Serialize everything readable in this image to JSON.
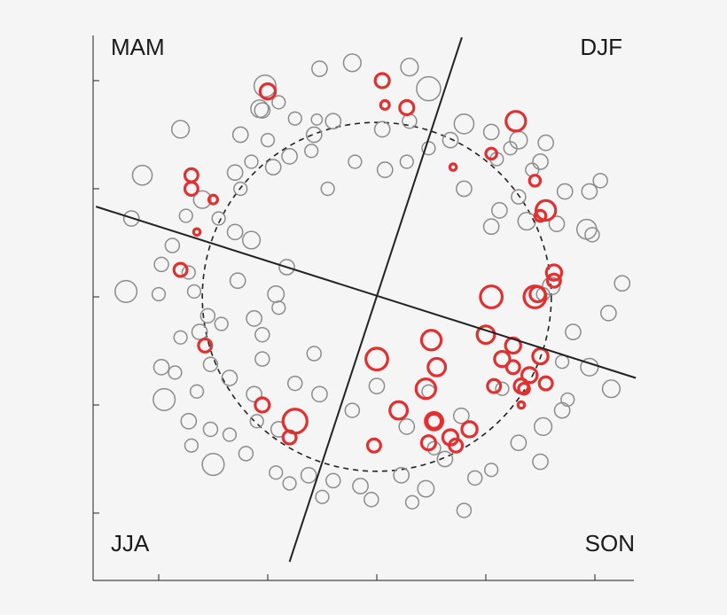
{
  "chart_data": {
    "type": "scatter",
    "title": "",
    "xlabel": "",
    "ylabel": "",
    "xlim": [
      -5,
      5
    ],
    "ylim": [
      -5,
      5
    ],
    "x_ticks": [
      -4,
      -2,
      0,
      2,
      4
    ],
    "y_ticks": [
      -4,
      -2,
      0,
      2,
      4
    ],
    "grid": false,
    "reference_circle": {
      "cx": 0,
      "cy": 0,
      "r": 3.2,
      "style": "dashed"
    },
    "dividing_lines": [
      {
        "x1": -5.15,
        "y1": 1.67,
        "x2": 4.75,
        "y2": -1.5
      },
      {
        "x1": 1.56,
        "y1": 4.8,
        "x2": -1.6,
        "y2": -4.9
      }
    ],
    "quadrant_labels": [
      {
        "text": "MAM",
        "position": "top-left"
      },
      {
        "text": "DJF",
        "position": "top-right"
      },
      {
        "text": "JJA",
        "position": "bottom-left"
      },
      {
        "text": "SON",
        "position": "bottom-right"
      }
    ],
    "series": [
      {
        "color": "#8c8c8c",
        "points": [
          [
            -2.15,
            3.48,
            0.16
          ],
          [
            -2.1,
            3.45,
            0.14
          ],
          [
            -1.8,
            3.6,
            0.12
          ],
          [
            -2.05,
            3.9,
            0.2
          ],
          [
            -1.05,
            4.22,
            0.14
          ],
          [
            -0.45,
            4.33,
            0.16
          ],
          [
            0.6,
            4.25,
            0.16
          ],
          [
            0.95,
            3.85,
            0.22
          ],
          [
            -1.15,
            3.0,
            0.14
          ],
          [
            -2.5,
            3.0,
            0.14
          ],
          [
            -3.6,
            3.1,
            0.16
          ],
          [
            -2.0,
            2.9,
            0.12
          ],
          [
            -1.5,
            3.3,
            0.12
          ],
          [
            -1.1,
            3.28,
            0.1
          ],
          [
            -0.8,
            3.25,
            0.14
          ],
          [
            0.1,
            3.1,
            0.14
          ],
          [
            0.6,
            3.25,
            0.13
          ],
          [
            1.6,
            3.2,
            0.18
          ],
          [
            2.1,
            3.05,
            0.14
          ],
          [
            2.6,
            2.9,
            0.16
          ],
          [
            3.0,
            2.5,
            0.14
          ],
          [
            2.45,
            2.75,
            0.12
          ],
          [
            2.2,
            2.55,
            0.12
          ],
          [
            1.35,
            2.9,
            0.14
          ],
          [
            0.95,
            2.75,
            0.12
          ],
          [
            0.55,
            2.5,
            0.12
          ],
          [
            0.15,
            2.35,
            0.14
          ],
          [
            -0.4,
            2.5,
            0.12
          ],
          [
            -1.2,
            2.7,
            0.12
          ],
          [
            -1.6,
            2.6,
            0.14
          ],
          [
            -1.9,
            2.4,
            0.14
          ],
          [
            -2.3,
            2.5,
            0.12
          ],
          [
            -2.6,
            2.3,
            0.14
          ],
          [
            -2.5,
            2.0,
            0.12
          ],
          [
            -3.2,
            1.8,
            0.16
          ],
          [
            -4.3,
            2.25,
            0.18
          ],
          [
            -4.5,
            1.45,
            0.14
          ],
          [
            -3.5,
            1.5,
            0.12
          ],
          [
            -2.9,
            1.45,
            0.12
          ],
          [
            -2.6,
            1.2,
            0.14
          ],
          [
            -2.3,
            1.05,
            0.16
          ],
          [
            -3.75,
            0.95,
            0.13
          ],
          [
            -3.95,
            0.6,
            0.13
          ],
          [
            -3.45,
            0.45,
            0.12
          ],
          [
            -4.6,
            0.1,
            0.2
          ],
          [
            -4.0,
            0.05,
            0.12
          ],
          [
            -3.35,
            0.1,
            0.12
          ],
          [
            -2.55,
            0.3,
            0.14
          ],
          [
            -1.85,
            0.05,
            0.15
          ],
          [
            -3.1,
            -0.35,
            0.13
          ],
          [
            -3.25,
            -0.65,
            0.14
          ],
          [
            -2.85,
            -0.5,
            0.12
          ],
          [
            -3.6,
            -0.75,
            0.12
          ],
          [
            -2.25,
            -0.4,
            0.14
          ],
          [
            -2.1,
            -0.7,
            0.13
          ],
          [
            -3.05,
            -1.25,
            0.13
          ],
          [
            -3.7,
            -1.4,
            0.12
          ],
          [
            -3.95,
            -1.3,
            0.14
          ],
          [
            -3.9,
            -1.9,
            0.2
          ],
          [
            -3.3,
            -1.75,
            0.12
          ],
          [
            -2.7,
            -1.5,
            0.14
          ],
          [
            -2.25,
            -1.8,
            0.14
          ],
          [
            -1.5,
            -1.6,
            0.13
          ],
          [
            -1.05,
            -1.8,
            0.14
          ],
          [
            -3.45,
            -2.3,
            0.14
          ],
          [
            -3.05,
            -2.45,
            0.13
          ],
          [
            -2.7,
            -2.55,
            0.12
          ],
          [
            -2.2,
            -2.3,
            0.12
          ],
          [
            -1.8,
            -2.45,
            0.14
          ],
          [
            -3.0,
            -3.1,
            0.2
          ],
          [
            -3.4,
            -2.75,
            0.12
          ],
          [
            -2.4,
            -2.9,
            0.13
          ],
          [
            -1.85,
            -3.25,
            0.12
          ],
          [
            -1.25,
            -3.3,
            0.14
          ],
          [
            -0.8,
            -3.4,
            0.13
          ],
          [
            -0.3,
            -3.5,
            0.14
          ],
          [
            0.45,
            -3.3,
            0.14
          ],
          [
            0.9,
            -3.55,
            0.15
          ],
          [
            1.25,
            -3.0,
            0.14
          ],
          [
            1.8,
            -3.35,
            0.13
          ],
          [
            2.1,
            -3.2,
            0.12
          ],
          [
            2.6,
            -2.7,
            0.14
          ],
          [
            3.0,
            -3.05,
            0.14
          ],
          [
            3.05,
            -2.4,
            0.16
          ],
          [
            3.4,
            -2.1,
            0.14
          ],
          [
            3.5,
            -1.9,
            0.12
          ],
          [
            3.4,
            -1.2,
            0.12
          ],
          [
            3.9,
            -1.3,
            0.16
          ],
          [
            4.3,
            -1.7,
            0.16
          ],
          [
            3.6,
            -0.65,
            0.14
          ],
          [
            3.05,
            0.05,
            0.12
          ],
          [
            3.2,
            0.2,
            0.16
          ],
          [
            4.25,
            -0.3,
            0.14
          ],
          [
            4.5,
            0.25,
            0.14
          ],
          [
            3.95,
            1.15,
            0.13
          ],
          [
            3.85,
            1.25,
            0.18
          ],
          [
            3.3,
            1.35,
            0.14
          ],
          [
            2.75,
            1.4,
            0.16
          ],
          [
            2.1,
            1.3,
            0.14
          ],
          [
            2.25,
            1.6,
            0.14
          ],
          [
            2.6,
            1.85,
            0.13
          ],
          [
            3.45,
            1.95,
            0.14
          ],
          [
            3.9,
            1.95,
            0.14
          ],
          [
            4.1,
            2.15,
            0.13
          ],
          [
            3.1,
            2.85,
            0.14
          ],
          [
            1.6,
            2.0,
            0.14
          ],
          [
            2.85,
            2.35,
            0.12
          ],
          [
            0.95,
            -1.75,
            0.12
          ],
          [
            0.0,
            -1.65,
            0.14
          ],
          [
            1.55,
            -2.2,
            0.14
          ],
          [
            2.3,
            -1.7,
            0.12
          ],
          [
            1.05,
            -2.8,
            0.12
          ],
          [
            0.55,
            -2.4,
            0.14
          ],
          [
            -0.45,
            -2.1,
            0.13
          ],
          [
            -0.1,
            -3.75,
            0.13
          ],
          [
            0.65,
            -3.8,
            0.12
          ],
          [
            1.6,
            -3.95,
            0.13
          ],
          [
            -1.0,
            -3.7,
            0.12
          ],
          [
            -1.6,
            -3.45,
            0.12
          ],
          [
            -2.1,
            -1.15,
            0.13
          ],
          [
            -1.15,
            -1.05,
            0.13
          ],
          [
            -1.8,
            -0.2,
            0.12
          ],
          [
            -1.65,
            0.55,
            0.14
          ],
          [
            -0.9,
            2.0,
            0.12
          ]
        ]
      },
      {
        "color": "#e03030",
        "points": [
          [
            0.1,
            4.0,
            0.13
          ],
          [
            0.15,
            3.55,
            0.08
          ],
          [
            0.55,
            3.5,
            0.13
          ],
          [
            -2.0,
            3.8,
            0.14
          ],
          [
            2.55,
            3.25,
            0.18
          ],
          [
            2.1,
            2.65,
            0.1
          ],
          [
            -3.4,
            2.0,
            0.12
          ],
          [
            -3.4,
            2.25,
            0.12
          ],
          [
            -3.0,
            1.8,
            0.08
          ],
          [
            1.4,
            2.4,
            0.06
          ],
          [
            2.9,
            2.15,
            0.1
          ],
          [
            3.1,
            1.6,
            0.18
          ],
          [
            3.0,
            1.5,
            0.1
          ],
          [
            -3.6,
            0.5,
            0.12
          ],
          [
            -3.3,
            1.2,
            0.06
          ],
          [
            3.25,
            0.45,
            0.14
          ],
          [
            3.25,
            0.3,
            0.12
          ],
          [
            2.1,
            0.0,
            0.2
          ],
          [
            2.9,
            0.0,
            0.2
          ],
          [
            2.95,
            0.05,
            0.14
          ],
          [
            1.0,
            -0.8,
            0.18
          ],
          [
            2.0,
            -0.7,
            0.16
          ],
          [
            2.5,
            -0.9,
            0.14
          ],
          [
            1.1,
            -1.3,
            0.16
          ],
          [
            -3.15,
            -0.9,
            0.12
          ],
          [
            2.3,
            -1.15,
            0.14
          ],
          [
            2.5,
            -1.3,
            0.12
          ],
          [
            2.8,
            -1.45,
            0.14
          ],
          [
            3.0,
            -1.1,
            0.14
          ],
          [
            2.65,
            -1.65,
            0.13
          ],
          [
            2.7,
            -1.7,
            0.1
          ],
          [
            3.1,
            -1.6,
            0.12
          ],
          [
            0.0,
            -1.15,
            0.2
          ],
          [
            0.9,
            -1.7,
            0.18
          ],
          [
            0.4,
            -2.1,
            0.16
          ],
          [
            2.15,
            -1.65,
            0.12
          ],
          [
            2.65,
            -2.0,
            0.06
          ],
          [
            -2.1,
            -2.0,
            0.13
          ],
          [
            -1.5,
            -2.3,
            0.22
          ],
          [
            1.05,
            -2.3,
            0.13
          ],
          [
            1.05,
            -2.3,
            0.16
          ],
          [
            -1.6,
            -2.6,
            0.12
          ],
          [
            1.7,
            -2.45,
            0.14
          ],
          [
            1.35,
            -2.6,
            0.14
          ],
          [
            0.95,
            -2.7,
            0.13
          ],
          [
            1.45,
            -2.75,
            0.12
          ],
          [
            -0.05,
            -2.75,
            0.12
          ]
        ]
      }
    ]
  }
}
